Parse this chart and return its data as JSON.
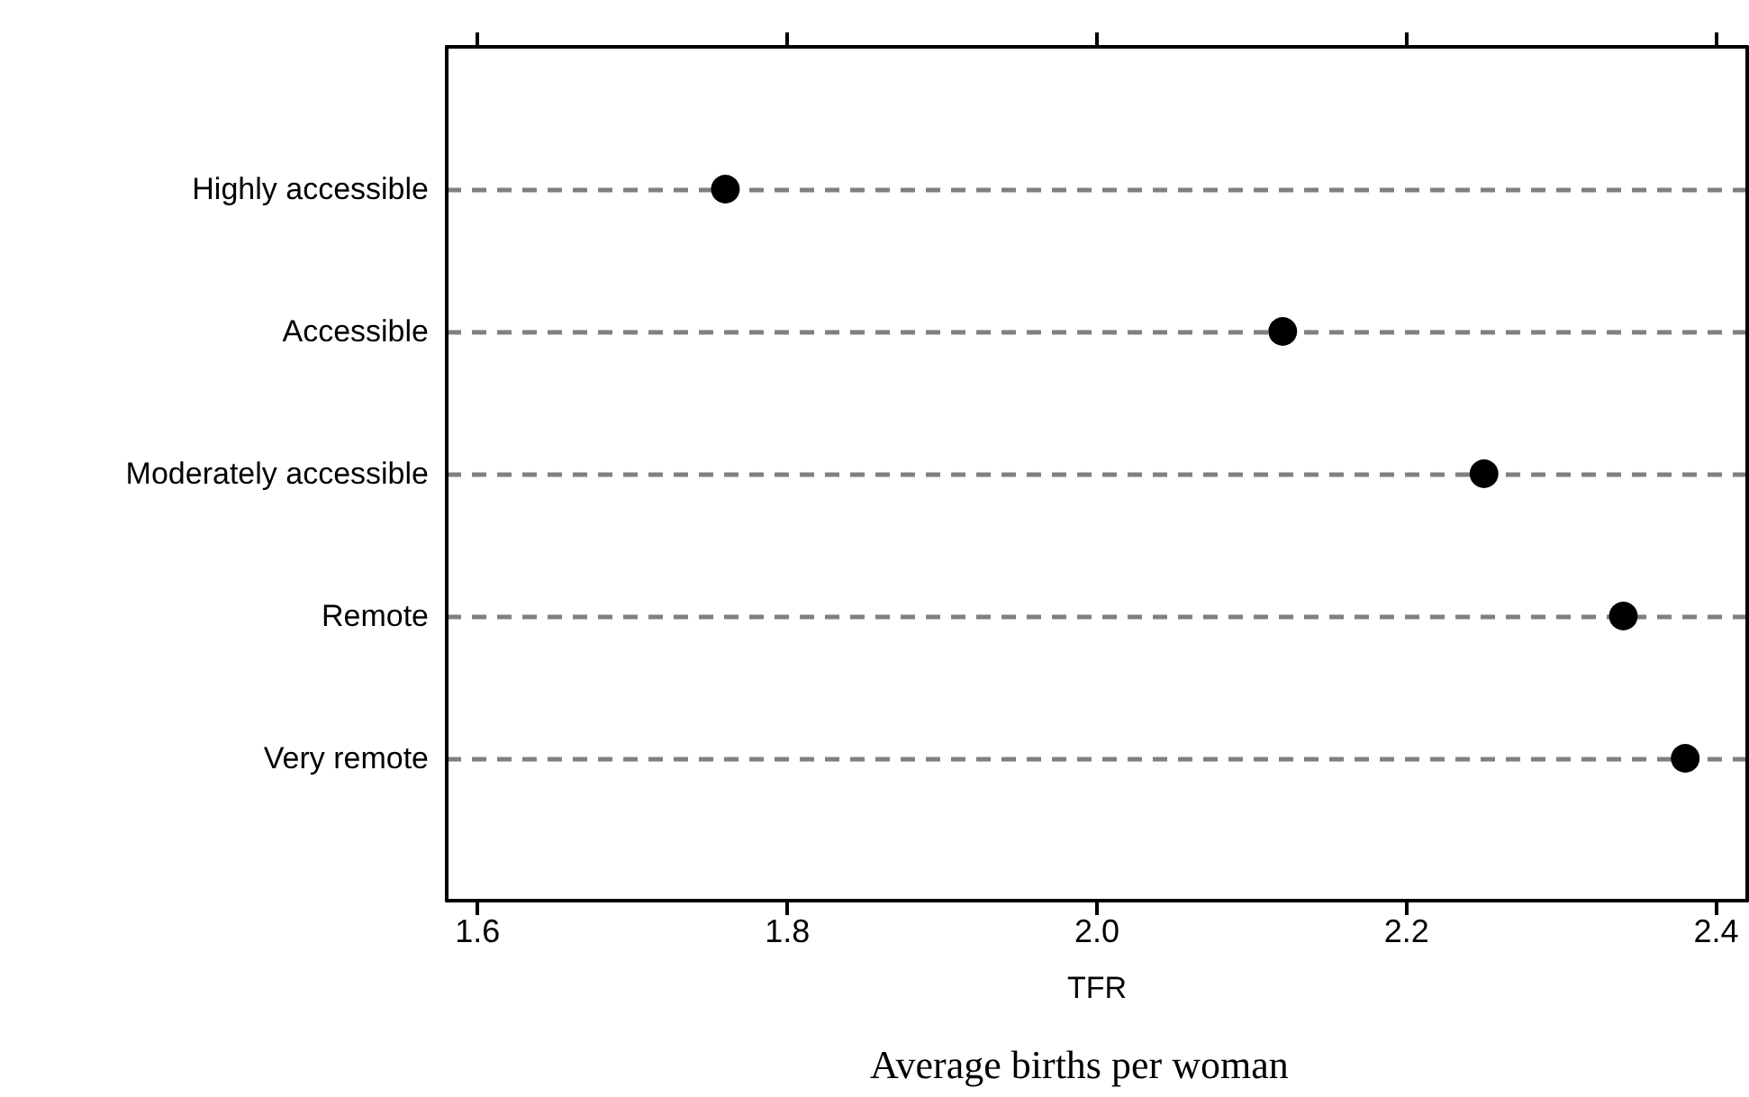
{
  "chart_data": {
    "type": "scatter",
    "orientation": "horizontal",
    "xlabel": "TFR",
    "annotations": [
      "Average births per woman"
    ],
    "categories": [
      "Highly accessible",
      "Accessible",
      "Moderately accessible",
      "Remote",
      "Very remote"
    ],
    "series": [
      {
        "color": "#000000",
        "values": [
          1.76,
          2.12,
          2.25,
          2.34,
          2.38
        ]
      }
    ],
    "xlim": [
      1.58,
      2.42
    ],
    "xticks": [
      1.6,
      1.8,
      {
        "value": 2,
        "label": "2.0"
      },
      2.2,
      2.4
    ],
    "grid": "y",
    "marker": "circle"
  }
}
